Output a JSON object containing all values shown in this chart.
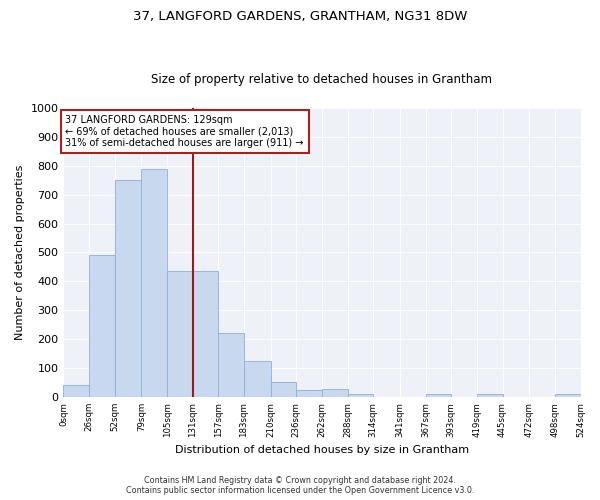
{
  "title": "37, LANGFORD GARDENS, GRANTHAM, NG31 8DW",
  "subtitle": "Size of property relative to detached houses in Grantham",
  "xlabel": "Distribution of detached houses by size in Grantham",
  "ylabel": "Number of detached properties",
  "bar_color": "#c8d8ee",
  "bar_edge_color": "#8ab0d8",
  "background_color": "#eef2f8",
  "grid_color": "#ffffff",
  "annotation_line_color": "#9b1a1a",
  "annotation_box_color": "#aa2020",
  "annotation_line1": "37 LANGFORD GARDENS: 129sqm",
  "annotation_line2": "← 69% of detached houses are smaller (2,013)",
  "annotation_line3": "31% of semi-detached houses are larger (911) →",
  "bin_edges": [
    0,
    26,
    52,
    79,
    105,
    131,
    157,
    183,
    210,
    236,
    262,
    288,
    314,
    341,
    367,
    393,
    419,
    445,
    472,
    498,
    524
  ],
  "bin_labels": [
    "0sqm",
    "26sqm",
    "52sqm",
    "79sqm",
    "105sqm",
    "131sqm",
    "157sqm",
    "183sqm",
    "210sqm",
    "236sqm",
    "262sqm",
    "288sqm",
    "314sqm",
    "341sqm",
    "367sqm",
    "393sqm",
    "419sqm",
    "445sqm",
    "472sqm",
    "498sqm",
    "524sqm"
  ],
  "bar_heights": [
    40,
    490,
    750,
    790,
    435,
    435,
    220,
    125,
    50,
    25,
    28,
    10,
    0,
    0,
    10,
    0,
    10,
    0,
    0,
    10
  ],
  "property_line_x": 131,
  "ylim": [
    0,
    1000
  ],
  "yticks": [
    0,
    100,
    200,
    300,
    400,
    500,
    600,
    700,
    800,
    900,
    1000
  ],
  "footnote_line1": "Contains HM Land Registry data © Crown copyright and database right 2024.",
  "footnote_line2": "Contains public sector information licensed under the Open Government Licence v3.0."
}
